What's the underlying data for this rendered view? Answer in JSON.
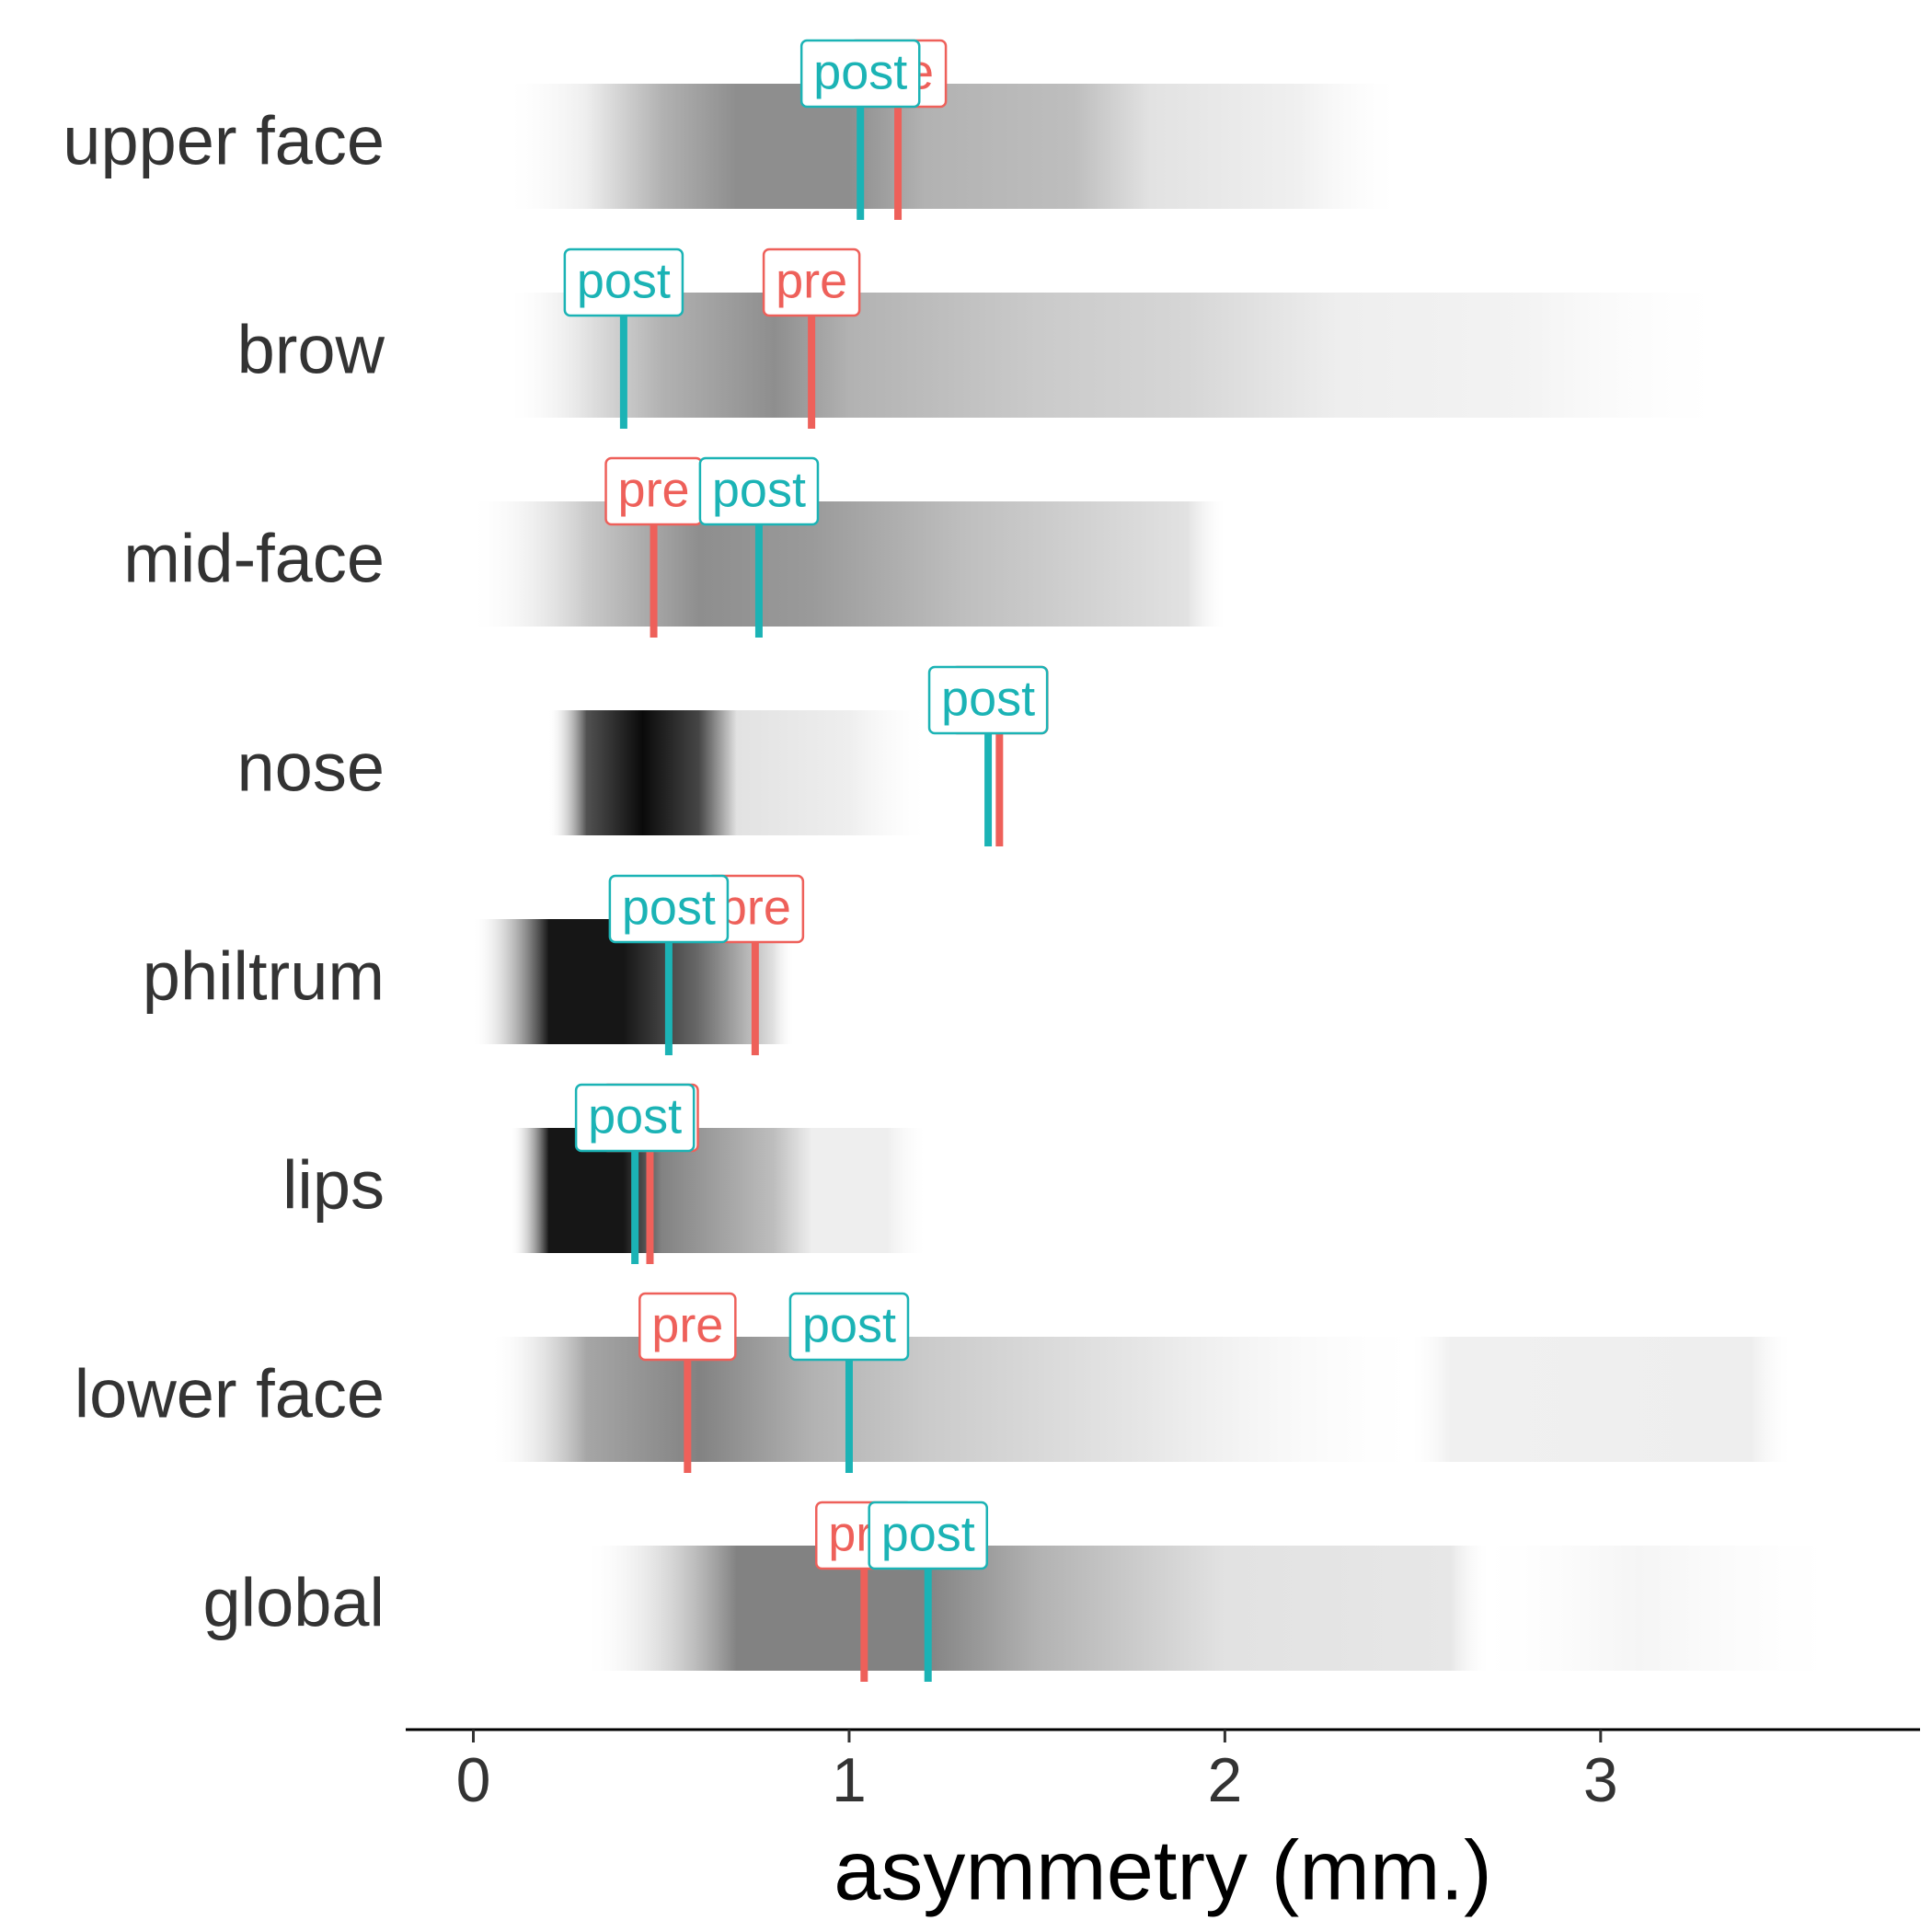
{
  "chart_data": {
    "type": "density-strip",
    "xlabel": "asymmetry (mm.)",
    "categories": [
      "upper face",
      "brow",
      "mid-face",
      "nose",
      "philtrum",
      "lips",
      "lower face",
      "global"
    ],
    "xlim": [
      -0.18,
      3.85
    ],
    "xticks": [
      0,
      1,
      2,
      3
    ],
    "series": [
      {
        "name": "pre",
        "color": "#ee605a",
        "values": [
          1.13,
          0.9,
          0.48,
          1.4,
          0.75,
          0.47,
          0.57,
          1.04
        ]
      },
      {
        "name": "post",
        "color": "#1bb3b5",
        "values": [
          1.03,
          0.4,
          0.76,
          1.37,
          0.52,
          0.43,
          1.0,
          1.21
        ]
      }
    ],
    "density": [
      {
        "x": [
          0.1,
          0.3,
          0.5,
          0.7,
          1.0,
          1.2,
          1.6,
          1.8,
          2.2,
          2.45
        ],
        "shade": [
          0,
          0.05,
          0.3,
          0.45,
          0.45,
          0.3,
          0.25,
          0.1,
          0.04,
          0
        ]
      },
      {
        "x": [
          0.1,
          0.3,
          0.5,
          0.8,
          1.0,
          1.5,
          1.9,
          2.3,
          2.8,
          3.3
        ],
        "shade": [
          0,
          0.1,
          0.3,
          0.45,
          0.3,
          0.2,
          0.15,
          0.05,
          0.03,
          0
        ]
      },
      {
        "x": [
          0,
          0.3,
          0.6,
          0.9,
          1.3,
          1.9,
          2.0
        ],
        "shade": [
          0,
          0.2,
          0.45,
          0.4,
          0.25,
          0.1,
          0
        ]
      },
      {
        "x": [
          0.2,
          0.3,
          0.45,
          0.6,
          0.7,
          1.0,
          1.2
        ],
        "shade": [
          0,
          0.7,
          1,
          0.75,
          0.1,
          0.05,
          0
        ]
      },
      {
        "x": [
          0,
          0.2,
          0.4,
          0.6,
          0.8,
          0.85
        ],
        "shade": [
          0,
          0.95,
          0.95,
          0.6,
          0.1,
          0
        ]
      },
      {
        "x": [
          0.1,
          0.2,
          0.4,
          0.5,
          0.8,
          0.9,
          1.1,
          1.2
        ],
        "shade": [
          0,
          0.95,
          0.95,
          0.5,
          0.25,
          0.05,
          0.05,
          0
        ]
      },
      {
        "x": [
          0.05,
          0.3,
          0.6,
          0.9,
          1.2,
          1.8,
          2.5,
          2.6,
          3.4,
          3.5
        ],
        "shade": [
          0,
          0.35,
          0.5,
          0.3,
          0.2,
          0.08,
          0,
          0.04,
          0.05,
          0
        ]
      },
      {
        "x": [
          0.3,
          0.7,
          1.2,
          1.5,
          2.0,
          2.6,
          2.7,
          3.1,
          3.6
        ],
        "shade": [
          0,
          0.5,
          0.5,
          0.3,
          0.1,
          0.08,
          0,
          0.02,
          0
        ]
      }
    ]
  }
}
